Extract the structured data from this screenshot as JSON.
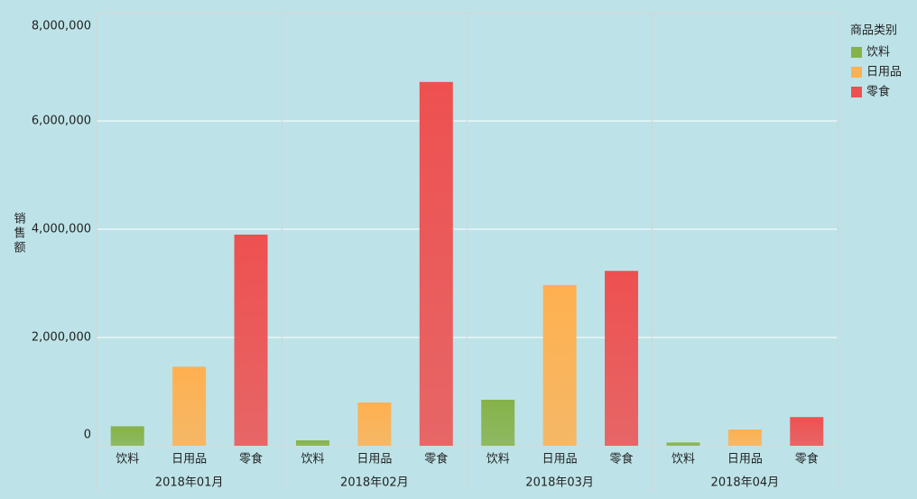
{
  "chart_data": {
    "type": "bar",
    "y_label": "销售额",
    "legend_title": "商品类别",
    "categories": [
      "2018年01月",
      "2018年02月",
      "2018年03月",
      "2018年04月"
    ],
    "series": [
      {
        "name": "饮料",
        "color": "#86b24a",
        "values": [
          360000,
          100000,
          850000,
          60000
        ]
      },
      {
        "name": "日用品",
        "color": "#ffb050",
        "values": [
          1460000,
          800000,
          2970000,
          300000
        ]
      },
      {
        "name": "零食",
        "color": "#ee5050",
        "values": [
          3900000,
          6720000,
          3230000,
          530000
        ]
      }
    ],
    "ylim": [
      0,
      8000000
    ],
    "yticks": [
      0,
      {
        "value": 2000000,
        "label": "2,000,000"
      },
      {
        "value": 4000000,
        "label": "4,000,000"
      },
      {
        "value": 6000000,
        "label": "6,000,000"
      },
      {
        "value": 8000000,
        "label": "8,000,000"
      }
    ],
    "grid": true,
    "legend": "right"
  }
}
